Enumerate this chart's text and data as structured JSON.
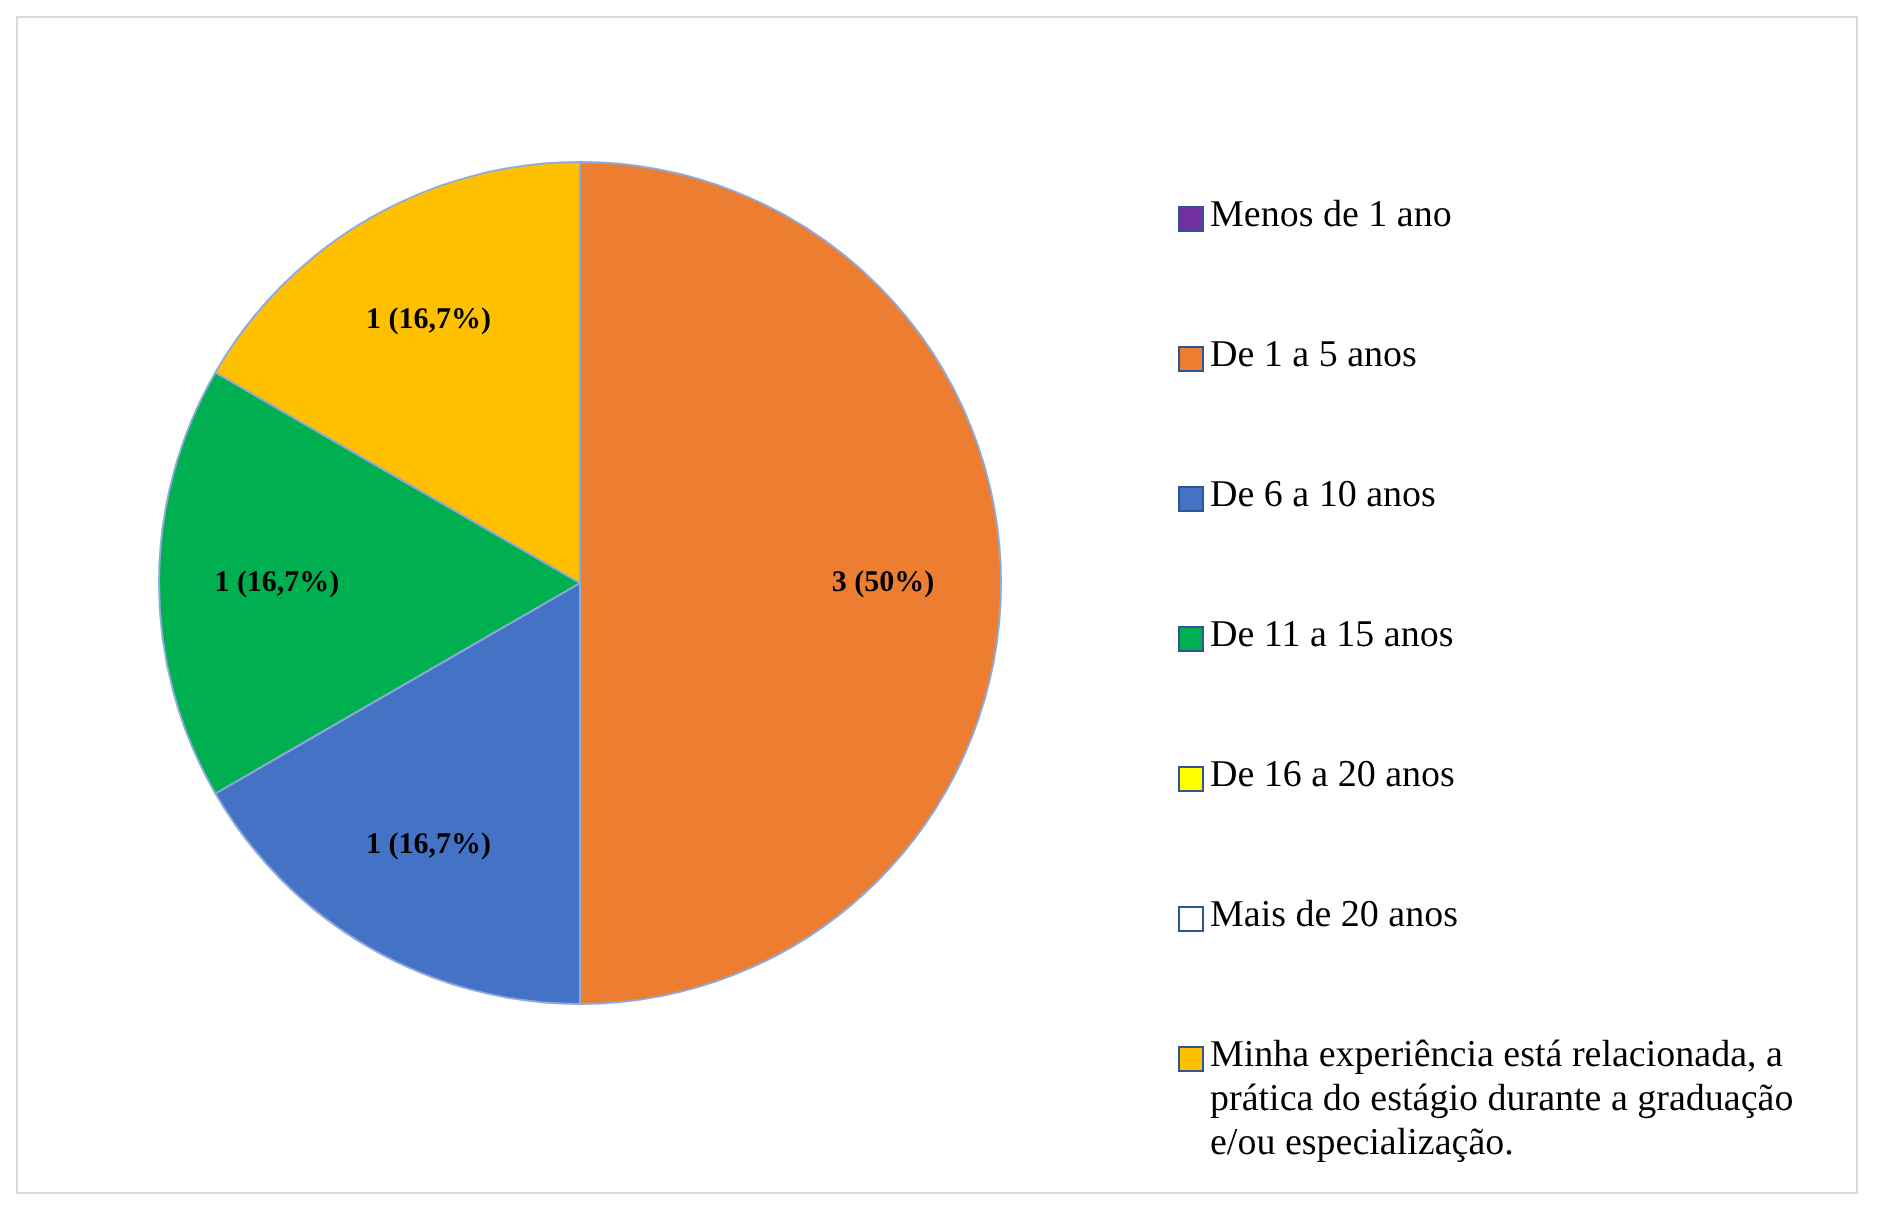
{
  "chart_data": {
    "type": "pie",
    "categories": [
      "Menos de 1 ano",
      "De 1 a 5 anos",
      "De 6 a 10 anos",
      "De 11 a 15 anos",
      "De 16 a 20 anos",
      "Mais de 20 anos",
      "Minha experiência está relacionada, a prática do estágio durante a graduação e/ou especialização."
    ],
    "values": [
      0,
      3,
      1,
      1,
      0,
      0,
      1
    ],
    "colors": [
      "#7030a0",
      "#ed7d31",
      "#4472c4",
      "#00b050",
      "#ffff00",
      "#ffffff",
      "#ffc000"
    ],
    "value_labels": [
      null,
      "3 (50%)",
      "1 (16,7%)",
      "1 (16,7%)",
      null,
      null,
      "1 (16,7%)"
    ],
    "legend": "right"
  }
}
